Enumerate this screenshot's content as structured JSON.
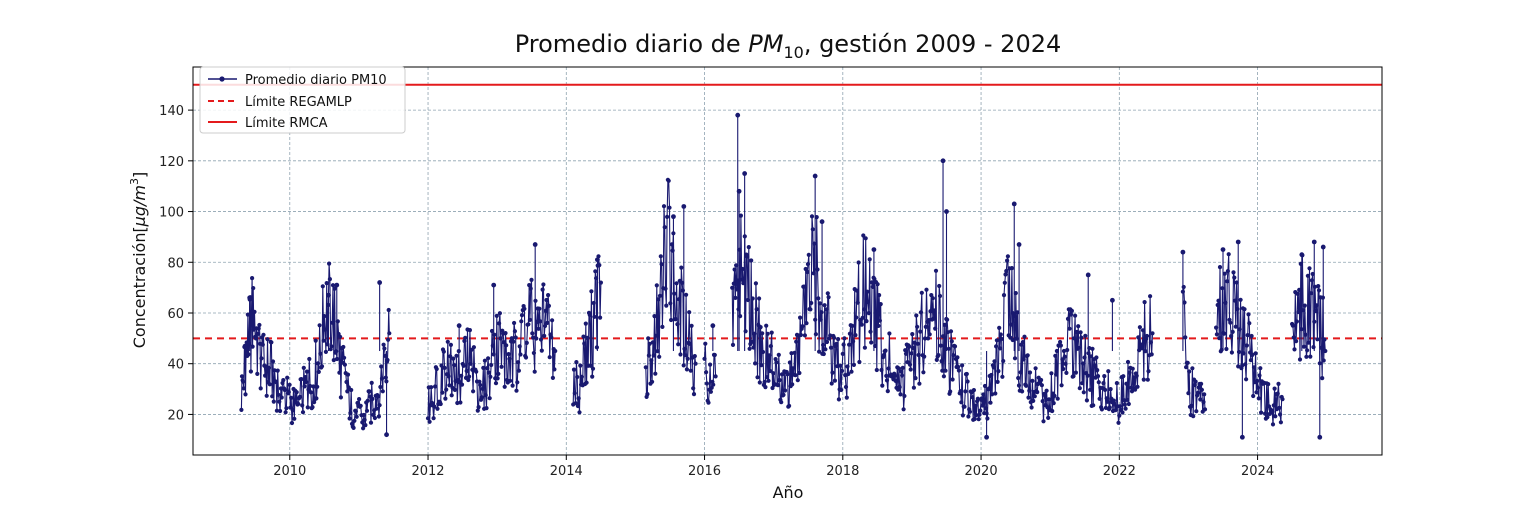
{
  "chart_data": {
    "type": "line",
    "title_main": "Promedio diario de ",
    "title_var": "PM",
    "title_sub": "10",
    "title_rest": ", gestión 2009 - 2024",
    "xlabel": "Año",
    "ylabel_main": "Concentración[",
    "ylabel_unit": "μg/m",
    "ylabel_sup": "3",
    "ylabel_close": "]",
    "xlim": [
      2008.6,
      2025.8
    ],
    "ylim": [
      4,
      157
    ],
    "xticks": [
      2010,
      2012,
      2014,
      2016,
      2018,
      2020,
      2022,
      2024
    ],
    "xtick_labels": [
      "2010",
      "2012",
      "2014",
      "2016",
      "2018",
      "2020",
      "2022",
      "2024"
    ],
    "yticks": [
      20,
      40,
      60,
      80,
      100,
      120,
      140
    ],
    "ytick_labels": [
      "20",
      "40",
      "60",
      "80",
      "100",
      "120",
      "140"
    ],
    "grid": true,
    "legend_position": "top-left",
    "series": [
      {
        "name": "Promedio diario PM10",
        "color": "#191970",
        "style": "line-with-markers",
        "segments": [
          {
            "x": [
              2009.3,
              2009.36,
              2009.42,
              2009.48,
              2009.55,
              2009.62,
              2009.7,
              2009.78,
              2009.86,
              2009.94,
              2010.02,
              2010.1,
              2010.18,
              2010.26,
              2010.34,
              2010.42,
              2010.5,
              2010.58,
              2010.66,
              2010.74,
              2010.82,
              2010.9,
              2010.98,
              2011.06,
              2011.14,
              2011.22,
              2011.3,
              2011.38,
              2011.44
            ],
            "y": [
              28,
              42,
              52,
              60,
              45,
              40,
              38,
              35,
              30,
              27,
              25,
              22,
              27,
              32,
              35,
              40,
              58,
              63,
              55,
              40,
              30,
              22,
              20,
              18,
              22,
              26,
              30,
              45,
              52
            ]
          },
          {
            "x": [
              2012.0,
              2012.08,
              2012.16,
              2012.24,
              2012.32,
              2012.4,
              2012.48,
              2012.56,
              2012.64,
              2012.72,
              2012.8,
              2012.88,
              2012.96,
              2013.04,
              2013.12,
              2013.2,
              2013.28,
              2013.36,
              2013.44,
              2013.52,
              2013.6,
              2013.68,
              2013.76,
              2013.84
            ],
            "y": [
              22,
              28,
              35,
              40,
              38,
              32,
              36,
              42,
              40,
              33,
              30,
              35,
              45,
              50,
              40,
              38,
              45,
              55,
              60,
              52,
              50,
              58,
              48,
              45
            ]
          },
          {
            "x": [
              2014.1,
              2014.18,
              2014.26,
              2014.34,
              2014.42,
              2014.5
            ],
            "y": [
              35,
              28,
              42,
              48,
              60,
              72
            ]
          },
          {
            "x": [
              2015.15,
              2015.23,
              2015.31,
              2015.39,
              2015.47,
              2015.55,
              2015.63,
              2015.71,
              2015.79,
              2015.87
            ],
            "y": [
              35,
              40,
              55,
              75,
              90,
              80,
              62,
              55,
              48,
              40
            ]
          },
          {
            "x": [
              2016.0,
              2016.08,
              2016.16
            ],
            "y": [
              40,
              30,
              35
            ]
          },
          {
            "x": [
              2016.4,
              2016.48,
              2016.56,
              2016.64,
              2016.72,
              2016.8,
              2016.88,
              2016.96,
              2017.04,
              2017.12,
              2017.2,
              2017.28,
              2017.36,
              2017.44,
              2017.52,
              2017.6,
              2017.68,
              2017.76,
              2017.84,
              2017.92,
              2018.0,
              2018.08,
              2018.16,
              2018.24,
              2018.32,
              2018.4,
              2018.48,
              2018.56,
              2018.64,
              2018.72,
              2018.8,
              2018.88,
              2018.96,
              2019.04,
              2019.12,
              2019.2,
              2019.28,
              2019.36,
              2019.44,
              2019.52,
              2019.6,
              2019.68,
              2019.76,
              2019.84,
              2019.92,
              2020.0,
              2020.08,
              2020.16,
              2020.24,
              2020.32,
              2020.4,
              2020.48,
              2020.56,
              2020.64,
              2020.72,
              2020.8,
              2020.88,
              2020.96,
              2021.04,
              2021.12,
              2021.2,
              2021.28,
              2021.36,
              2021.44,
              2021.52,
              2021.6,
              2021.68,
              2021.76,
              2021.84,
              2021.92,
              2022.0,
              2022.08,
              2022.16,
              2022.24,
              2022.32,
              2022.4,
              2022.48
            ],
            "y": [
              60,
              70,
              80,
              65,
              55,
              50,
              45,
              40,
              35,
              30,
              28,
              35,
              45,
              58,
              70,
              78,
              65,
              55,
              45,
              40,
              38,
              42,
              50,
              62,
              70,
              66,
              55,
              48,
              42,
              36,
              30,
              32,
              38,
              45,
              50,
              55,
              60,
              58,
              50,
              42,
              38,
              32,
              28,
              25,
              22,
              20,
              25,
              30,
              40,
              55,
              65,
              55,
              45,
              38,
              32,
              28,
              25,
              28,
              32,
              38,
              45,
              50,
              45,
              40,
              38,
              35,
              32,
              30,
              28,
              25,
              25,
              28,
              32,
              38,
              45,
              50,
              52
            ]
          },
          {
            "x": [
              2022.92,
              2023.0,
              2023.08,
              2023.16,
              2023.24
            ],
            "y": [
              60,
              32,
              28,
              25,
              22
            ]
          },
          {
            "x": [
              2023.4,
              2023.48,
              2023.56,
              2023.64,
              2023.72,
              2023.8,
              2023.88,
              2023.96,
              2024.04,
              2024.12,
              2024.2,
              2024.28,
              2024.36
            ],
            "y": [
              58,
              65,
              70,
              60,
              55,
              50,
              45,
              38,
              30,
              25,
              22,
              24,
              26
            ]
          },
          {
            "x": [
              2024.5,
              2024.58,
              2024.66,
              2024.74,
              2024.82,
              2024.9,
              2024.98
            ],
            "y": [
              55,
              60,
              65,
              60,
              58,
              55,
              45
            ]
          }
        ],
        "spikes": [
          {
            "x": 2009.42,
            "y": 66
          },
          {
            "x": 2010.56,
            "y": 67
          },
          {
            "x": 2010.68,
            "y": 71
          },
          {
            "x": 2011.3,
            "y": 72
          },
          {
            "x": 2011.4,
            "y": 12
          },
          {
            "x": 2012.45,
            "y": 55
          },
          {
            "x": 2012.95,
            "y": 71
          },
          {
            "x": 2013.55,
            "y": 87
          },
          {
            "x": 2014.45,
            "y": 81
          },
          {
            "x": 2015.55,
            "y": 98
          },
          {
            "x": 2015.7,
            "y": 102
          },
          {
            "x": 2016.12,
            "y": 55
          },
          {
            "x": 2016.48,
            "y": 138
          },
          {
            "x": 2016.5,
            "y": 108
          },
          {
            "x": 2016.58,
            "y": 115
          },
          {
            "x": 2017.6,
            "y": 114
          },
          {
            "x": 2017.7,
            "y": 96
          },
          {
            "x": 2018.45,
            "y": 85
          },
          {
            "x": 2019.45,
            "y": 120
          },
          {
            "x": 2019.5,
            "y": 100
          },
          {
            "x": 2020.08,
            "y": 11
          },
          {
            "x": 2020.48,
            "y": 103
          },
          {
            "x": 2020.55,
            "y": 87
          },
          {
            "x": 2021.55,
            "y": 75
          },
          {
            "x": 2021.9,
            "y": 65
          },
          {
            "x": 2022.92,
            "y": 84
          },
          {
            "x": 2023.5,
            "y": 85
          },
          {
            "x": 2023.72,
            "y": 88
          },
          {
            "x": 2023.78,
            "y": 11
          },
          {
            "x": 2024.64,
            "y": 83
          },
          {
            "x": 2024.82,
            "y": 88
          },
          {
            "x": 2024.9,
            "y": 11
          },
          {
            "x": 2024.95,
            "y": 86
          }
        ]
      },
      {
        "name": "Límite REGAMLP",
        "color": "#e41a1c",
        "style": "dashed",
        "y": 50
      },
      {
        "name": "Límite RMCA",
        "color": "#e41a1c",
        "style": "solid",
        "y": 150
      }
    ]
  }
}
